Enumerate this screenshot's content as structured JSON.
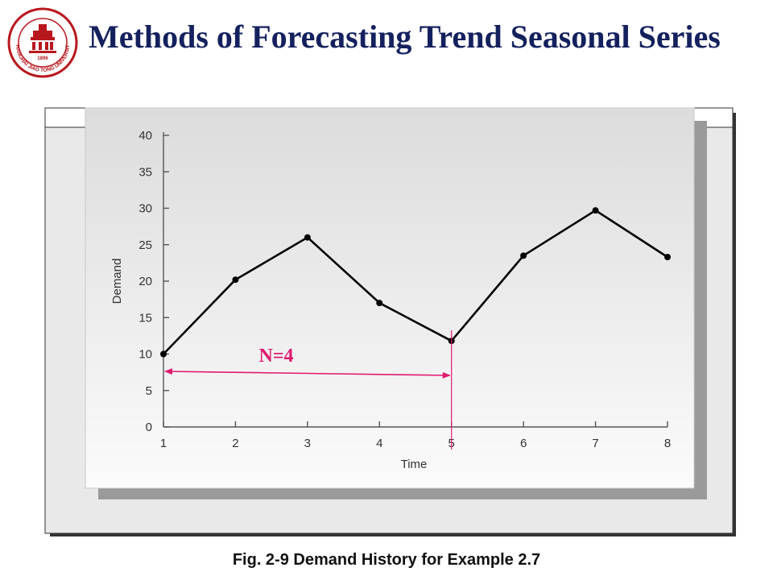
{
  "slide": {
    "title": "Methods of Forecasting Trend Seasonal Series",
    "caption": "Fig. 2-9 Demand History for Example 2.7"
  },
  "logo": {
    "icon": "university-seal-icon",
    "text": "SHANGHAI JIAO TONG UNIVERSITY",
    "year": "1896",
    "color": "#b8171d"
  },
  "chart_data": {
    "type": "line",
    "x": [
      1,
      2,
      3,
      4,
      5,
      6,
      7,
      8
    ],
    "values": [
      10,
      20.2,
      26,
      17,
      11.8,
      23.5,
      29.7,
      23.3
    ],
    "xlabel": "Time",
    "ylabel": "Demand",
    "xticks": [
      "1",
      "2",
      "3",
      "4",
      "5",
      "6",
      "7",
      "8"
    ],
    "yticks": [
      "0",
      "5",
      "10",
      "15",
      "20",
      "25",
      "30",
      "35",
      "40"
    ],
    "xlim": [
      1,
      8
    ],
    "ylim": [
      0,
      40
    ],
    "grid": false,
    "annotation": {
      "label": "N=4",
      "from_x": 1,
      "to_x": 5,
      "color": "#e0196e"
    },
    "line_color": "#000000",
    "panel_color": "#e6e6e6"
  }
}
